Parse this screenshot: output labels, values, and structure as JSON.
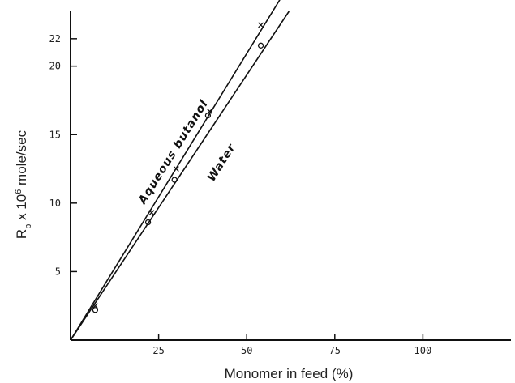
{
  "chart_data": {
    "type": "line",
    "title": "",
    "xlabel": "Monomer in feed (%)",
    "ylabel_parts": {
      "main": "R",
      "sub": "p",
      "rest1": " x 10",
      "sup": "6",
      "rest2": " mole/sec"
    },
    "xlim": [
      0,
      125
    ],
    "ylim": [
      0,
      24
    ],
    "x_ticks": [
      25,
      50,
      75,
      100
    ],
    "y_ticks": [
      5,
      10,
      15,
      20,
      22
    ],
    "grid": false,
    "legend": "none",
    "series": [
      {
        "name": "Aqueous butanol",
        "line": {
          "x": [
            0,
            60
          ],
          "y": [
            0,
            25.1
          ]
        },
        "marker": "x",
        "points": [
          {
            "x": 7,
            "y": 2.5
          },
          {
            "x": 23,
            "y": 9.3
          },
          {
            "x": 30,
            "y": 12.5
          },
          {
            "x": 39.5,
            "y": 16.7
          },
          {
            "x": 54,
            "y": 23.0
          }
        ]
      },
      {
        "name": "Water",
        "line": {
          "x": [
            0,
            62
          ],
          "y": [
            0,
            24.0
          ]
        },
        "marker": "o",
        "points": [
          {
            "x": 7,
            "y": 2.2
          },
          {
            "x": 22,
            "y": 8.6
          },
          {
            "x": 29.5,
            "y": 11.7
          },
          {
            "x": 39,
            "y": 16.4
          },
          {
            "x": 54,
            "y": 21.5
          }
        ]
      }
    ]
  }
}
